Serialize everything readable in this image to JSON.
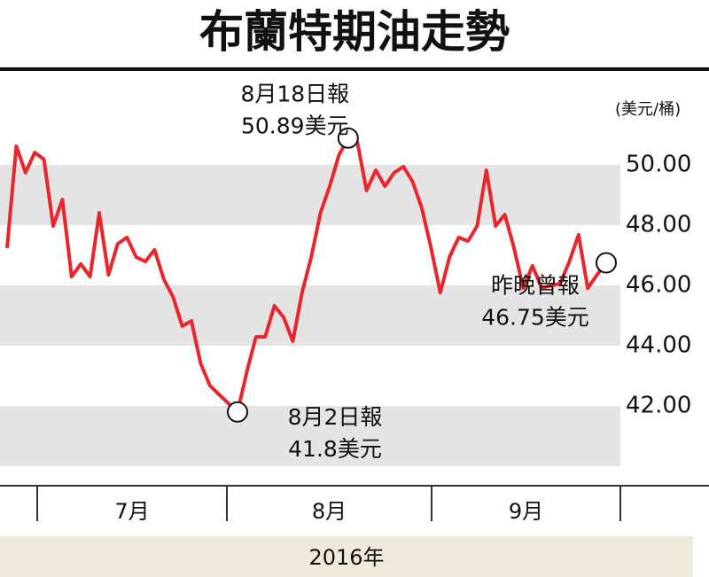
{
  "chart_data": {
    "type": "line",
    "title": "布蘭特期油走勢",
    "y_unit": "(美元/桶)",
    "series": [
      {
        "color": "#e8262b",
        "values": [
          47.24,
          50.62,
          49.74,
          50.41,
          50.18,
          47.97,
          48.85,
          46.29,
          46.71,
          46.29,
          48.41,
          46.35,
          47.38,
          47.59,
          46.94,
          46.79,
          47.18,
          46.21,
          45.62,
          44.65,
          44.82,
          43.41,
          42.68,
          42.38,
          42.09,
          41.8,
          43.12,
          44.29,
          44.29,
          45.32,
          44.94,
          44.15,
          45.76,
          46.94,
          48.41,
          49.29,
          50.32,
          50.89,
          50.76,
          49.15,
          49.82,
          49.29,
          49.74,
          49.94,
          49.44,
          48.56,
          47.24,
          45.76,
          46.94,
          47.59,
          47.47,
          47.97,
          49.82,
          47.97,
          48.35,
          47.24,
          45.91,
          46.65,
          45.91,
          46.0,
          46.06,
          46.79,
          47.68,
          45.91,
          46.35,
          46.75
        ]
      }
    ],
    "ylim": [
      40,
      52
    ],
    "yticks": [
      {
        "value": 42,
        "label": "42.00"
      },
      {
        "value": 44,
        "label": "44.00"
      },
      {
        "value": 46,
        "label": "46.00"
      },
      {
        "value": 48,
        "label": "48.00"
      },
      {
        "value": 50,
        "label": "50.00"
      }
    ],
    "bands": [
      [
        40,
        42
      ],
      [
        44,
        46
      ],
      [
        48,
        50
      ]
    ],
    "band_color": "#e4e4e4",
    "months": [
      "7月",
      "8月",
      "9月"
    ],
    "year": "2016年",
    "annotations": [
      {
        "point": 37,
        "lines": [
          "8月18日報",
          "50.89美元"
        ]
      },
      {
        "point": 25,
        "lines": [
          "8月2日報",
          "41.8美元"
        ]
      },
      {
        "point": 65,
        "lines": [
          "昨晚曾報",
          "46.75美元"
        ]
      }
    ]
  }
}
